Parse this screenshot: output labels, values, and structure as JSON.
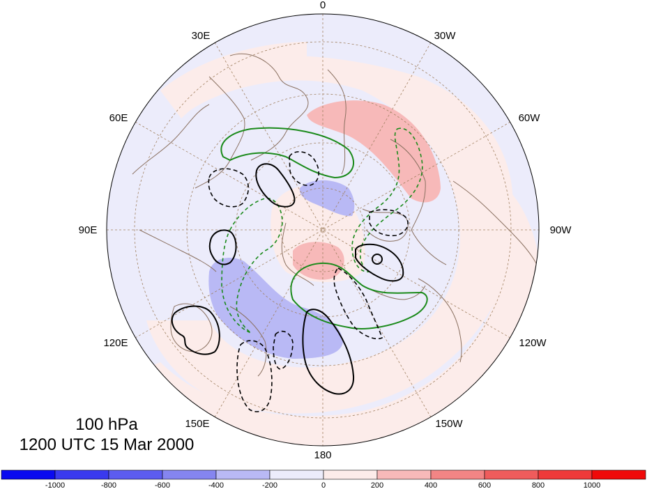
{
  "title": {
    "level": "100 hPa",
    "datetime": "1200 UTC 15 Mar 2000"
  },
  "longitude_labels": {
    "lon_0": "0",
    "lon_30w": "30W",
    "lon_60w": "60W",
    "lon_90w": "90W",
    "lon_120w": "120W",
    "lon_150w": "150W",
    "lon_180": "180",
    "lon_150e": "150E",
    "lon_120e": "120E",
    "lon_90e": "90E",
    "lon_60e": "60E",
    "lon_30e": "30E"
  },
  "colorbar": {
    "tick_labels": [
      "-1000",
      "-800",
      "-600",
      "-400",
      "-200",
      "0",
      "200",
      "400",
      "600",
      "800",
      "1000"
    ],
    "colors": [
      "#0a0af0",
      "#3a3aee",
      "#5c5cf0",
      "#8585f0",
      "#b9b9f5",
      "#ececfb",
      "#fcecea",
      "#f7b9b9",
      "#f28585",
      "#ef5c5c",
      "#ee3a3a",
      "#f00a0a"
    ]
  },
  "contour_colors": {
    "positive": "#000000",
    "negative": "#000000",
    "zero_anomaly": "#1a8a1a",
    "land": "#8a7060",
    "grid": "#a08060"
  }
}
